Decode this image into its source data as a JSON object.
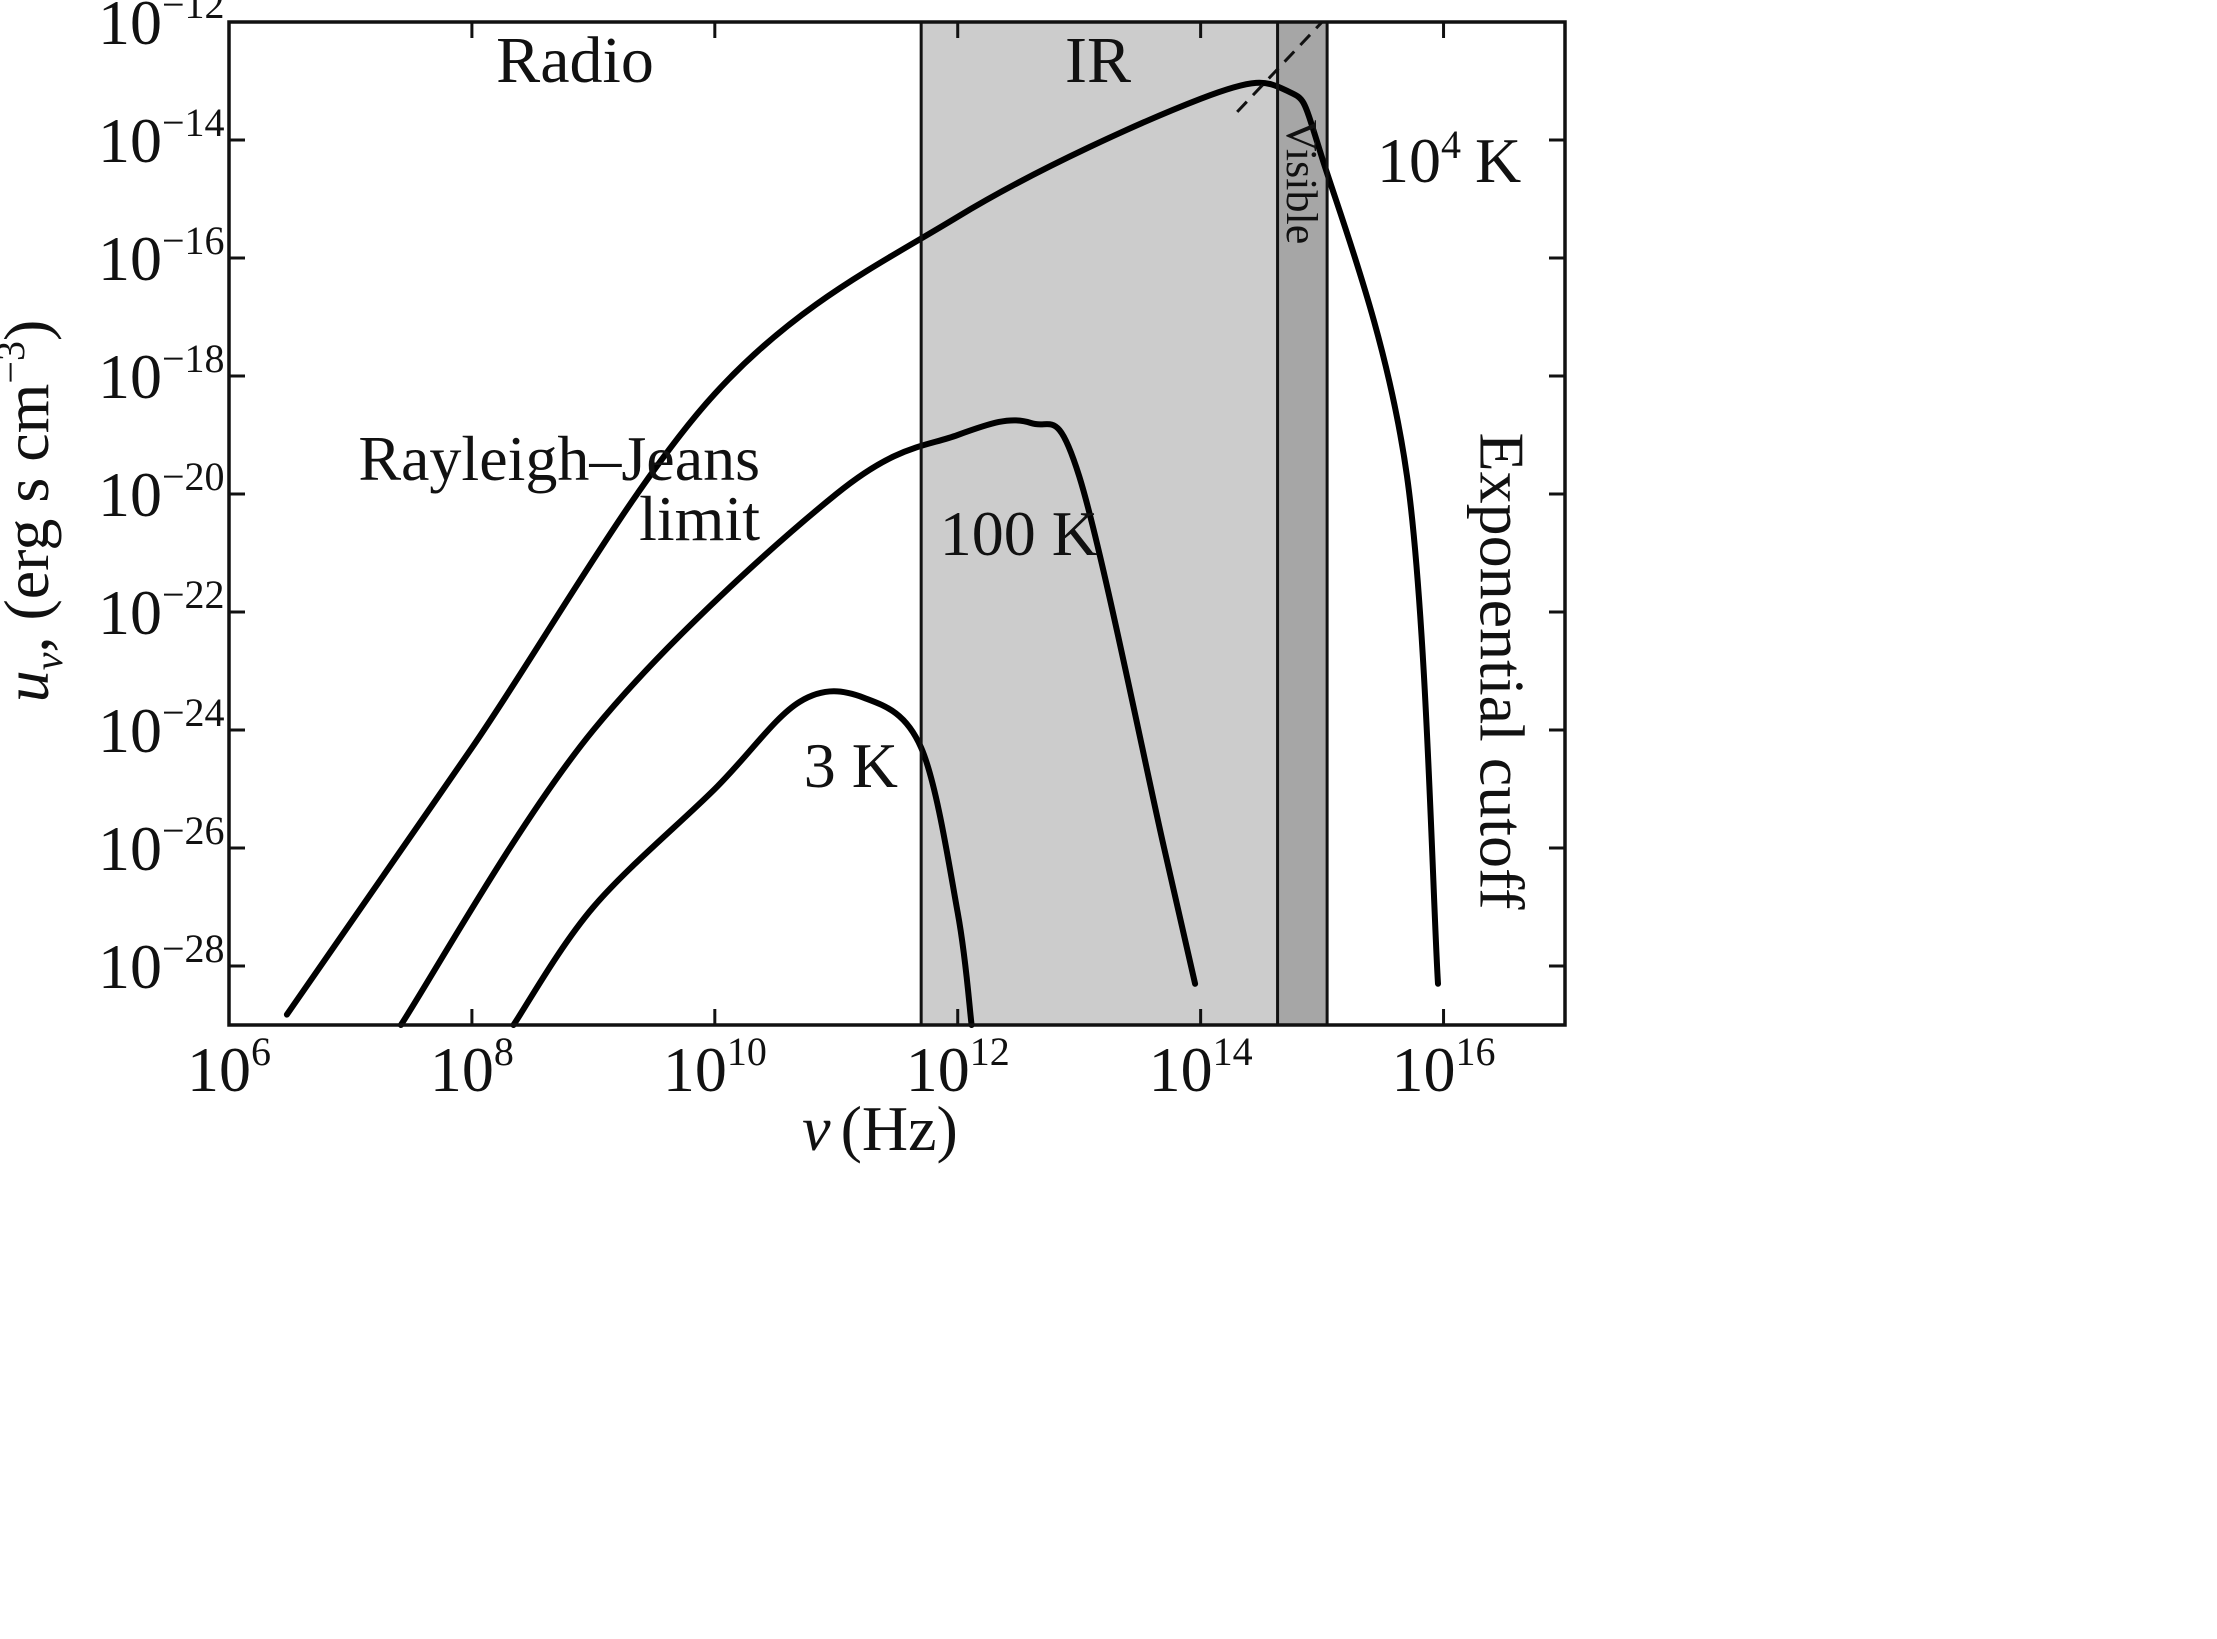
{
  "chart_data": {
    "type": "line",
    "title": "",
    "xscale": "log",
    "yscale": "log",
    "xlim": [
      1000000.0,
      1e+17
    ],
    "ylim": [
      1e-29,
      1e-12
    ],
    "xlabel": {
      "symbol": "ν",
      "unit": "(Hz)"
    },
    "ylabel": {
      "symbol": "u",
      "subscript": "ν",
      "unit_prefix": "(erg s cm",
      "unit_exp": "−3",
      "unit_suffix": ")"
    },
    "x_ticks": [
      {
        "base": "10",
        "exp": "6",
        "value": 1000000.0
      },
      {
        "base": "10",
        "exp": "8",
        "value": 100000000.0
      },
      {
        "base": "10",
        "exp": "10",
        "value": 10000000000.0
      },
      {
        "base": "10",
        "exp": "12",
        "value": 1000000000000.0
      },
      {
        "base": "10",
        "exp": "14",
        "value": 100000000000000.0
      },
      {
        "base": "10",
        "exp": "16",
        "value": 1e+16
      }
    ],
    "y_ticks": [
      {
        "base": "10",
        "exp": "−12",
        "value": 1e-12
      },
      {
        "base": "10",
        "exp": "−14",
        "value": 1e-14
      },
      {
        "base": "10",
        "exp": "−16",
        "value": 1e-16
      },
      {
        "base": "10",
        "exp": "−18",
        "value": 1e-18
      },
      {
        "base": "10",
        "exp": "−20",
        "value": 1e-20
      },
      {
        "base": "10",
        "exp": "−22",
        "value": 1e-22
      },
      {
        "base": "10",
        "exp": "−24",
        "value": 1e-24
      },
      {
        "base": "10",
        "exp": "−26",
        "value": 1e-26
      },
      {
        "base": "10",
        "exp": "−28",
        "value": 1e-28
      }
    ],
    "regions": [
      {
        "name": "Radio",
        "x_range": [
          1000000.0,
          500000000000.0
        ],
        "fill": "#ffffff"
      },
      {
        "name": "IR",
        "x_range": [
          500000000000.0,
          430000000000000.0
        ],
        "fill": "#cccccc"
      },
      {
        "name": "Visible",
        "x_range": [
          430000000000000.0,
          1100000000000000.0
        ],
        "fill": "#a6a6a6"
      }
    ],
    "series": [
      {
        "name": "10⁴ K",
        "temperature_K": 10000,
        "points": [
          [
            3000000.0,
            1.5e-29
          ],
          [
            100000000.0,
            5e-25
          ],
          [
            10000000000.0,
            5e-19
          ],
          [
            1000000000000.0,
            5e-16
          ],
          [
            100000000000000.0,
            5e-14
          ],
          [
            500000000000000.0,
            7e-14
          ],
          [
            1000000000000000.0,
            5e-15
          ],
          [
            5000000000000000.0,
            2e-20
          ],
          [
            9000000000000000.0,
            5e-29
          ]
        ]
      },
      {
        "name": "100 K",
        "temperature_K": 100,
        "points": [
          [
            26000000.0,
            1e-29
          ],
          [
            1000000000.0,
            1e-24
          ],
          [
            100000000000.0,
            1e-20
          ],
          [
            1000000000000.0,
            1e-19
          ],
          [
            4000000000000.0,
            1.6e-19
          ],
          [
            10000000000000.0,
            2e-20
          ],
          [
            50000000000000.0,
            1e-26
          ],
          [
            90000000000000.0,
            5e-29
          ]
        ]
      },
      {
        "name": "3 K",
        "temperature_K": 3,
        "points": [
          [
            220000000.0,
            1e-29
          ],
          [
            1000000000.0,
            1e-27
          ],
          [
            10000000000.0,
            1e-25
          ],
          [
            50000000000.0,
            3e-24
          ],
          [
            170000000000.0,
            3.5e-24
          ],
          [
            500000000000.0,
            5e-25
          ],
          [
            1000000000000.0,
            8e-28
          ],
          [
            1300000000000.0,
            1e-29
          ]
        ]
      }
    ],
    "rayleigh_jeans_extension": {
      "style": "dashed",
      "from": [
        200000000000000.0,
        3e-14
      ],
      "to": [
        1000000000000000.0,
        1e-12
      ]
    },
    "annotations": {
      "rj_line1": "Rayleigh–Jeans",
      "rj_line2": "limit",
      "cutoff": "Exponential cutoff",
      "label_3k": "3 K",
      "label_100k": "100 K",
      "label_1e4k_base": "10",
      "label_1e4k_exp": "4",
      "label_1e4k_unit": "K"
    },
    "grid": false,
    "legend": "none",
    "line_color": "#000000"
  }
}
